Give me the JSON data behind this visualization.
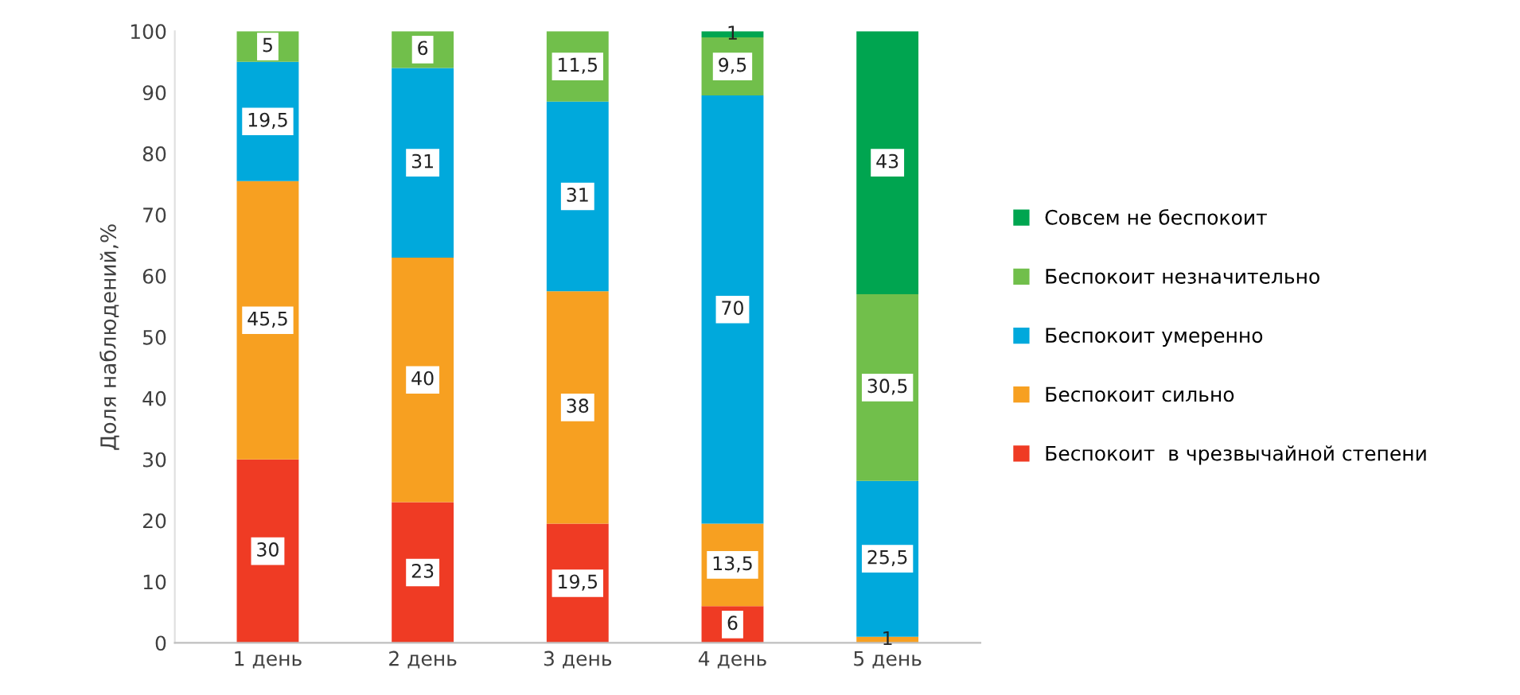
{
  "chart_data": {
    "type": "bar",
    "stacked": true,
    "ylabel": "Доля наблюдений,%",
    "categories": [
      "1 день",
      "2 день",
      "3 день",
      "4 день",
      "5 день"
    ],
    "ylim": [
      0,
      100
    ],
    "yticks": [
      0,
      10,
      20,
      30,
      40,
      50,
      60,
      70,
      80,
      90,
      100
    ],
    "grid": false,
    "legend": "right",
    "series": [
      {
        "name": "Беспокоит  в чрезвычайной степени",
        "color": "#ef3b24",
        "values": [
          30,
          23,
          19.5,
          6,
          0
        ],
        "value_labels": [
          "30",
          "23",
          "19,5",
          "6",
          null
        ]
      },
      {
        "name": "Беспокоит сильно",
        "color": "#f7a021",
        "values": [
          45.5,
          40,
          38,
          13.5,
          1
        ],
        "value_labels": [
          "45,5",
          "40",
          "38",
          "13,5",
          "1"
        ]
      },
      {
        "name": "Беспокоит умеренно",
        "color": "#00a9dc",
        "values": [
          19.5,
          31,
          31,
          70,
          25.5
        ],
        "value_labels": [
          "19,5",
          "31",
          "31",
          "70",
          "25,5"
        ]
      },
      {
        "name": "Беспокоит незначительно",
        "color": "#71bf4b",
        "values": [
          5,
          6,
          11.5,
          9.5,
          30.5
        ],
        "value_labels": [
          "5",
          "6",
          "11,5",
          "9,5",
          "30,5"
        ]
      },
      {
        "name": "Совсем не беспокоит",
        "color": "#00a550",
        "values": [
          0,
          0,
          0,
          1,
          43
        ],
        "value_labels": [
          null,
          null,
          null,
          "1",
          "43"
        ]
      }
    ]
  }
}
